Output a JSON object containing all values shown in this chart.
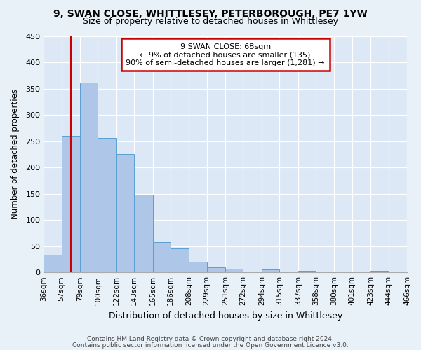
{
  "title_line1": "9, SWAN CLOSE, WHITTLESEY, PETERBOROUGH, PE7 1YW",
  "title_line2": "Size of property relative to detached houses in Whittlesey",
  "xlabel": "Distribution of detached houses by size in Whittlesey",
  "ylabel": "Number of detached properties",
  "bin_edges": [
    36,
    57,
    79,
    100,
    122,
    143,
    165,
    186,
    208,
    229,
    251,
    272,
    294,
    315,
    337,
    358,
    380,
    401,
    423,
    444,
    466
  ],
  "bin_labels": [
    "36sqm",
    "57sqm",
    "79sqm",
    "100sqm",
    "122sqm",
    "143sqm",
    "165sqm",
    "186sqm",
    "208sqm",
    "229sqm",
    "251sqm",
    "272sqm",
    "294sqm",
    "315sqm",
    "337sqm",
    "358sqm",
    "380sqm",
    "401sqm",
    "423sqm",
    "444sqm",
    "466sqm"
  ],
  "counts": [
    33,
    260,
    362,
    256,
    226,
    148,
    57,
    45,
    20,
    10,
    7,
    0,
    6,
    0,
    3,
    0,
    0,
    0,
    3,
    0,
    2
  ],
  "bar_color": "#aec6e8",
  "bar_edge_color": "#5a9fd4",
  "property_sqm": 68,
  "vline_color": "#cc0000",
  "annotation_title": "9 SWAN CLOSE: 68sqm",
  "annotation_line2": "← 9% of detached houses are smaller (135)",
  "annotation_line3": "90% of semi-detached houses are larger (1,281) →",
  "annotation_box_color": "#cc0000",
  "ylim": [
    0,
    450
  ],
  "yticks": [
    0,
    50,
    100,
    150,
    200,
    250,
    300,
    350,
    400,
    450
  ],
  "bg_color": "#e8f0f8",
  "plot_bg_color": "#dce8f5",
  "footer_line1": "Contains HM Land Registry data © Crown copyright and database right 2024.",
  "footer_line2": "Contains public sector information licensed under the Open Government Licence v3.0."
}
